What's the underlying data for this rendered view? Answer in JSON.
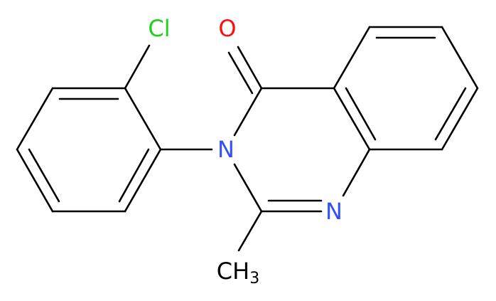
{
  "atoms": [
    {
      "label": "Cl"
    },
    {
      "label": "O"
    },
    {
      "label": "N"
    },
    {
      "label": "N"
    },
    {
      "label": "CH",
      "subscript": "3"
    }
  ]
}
